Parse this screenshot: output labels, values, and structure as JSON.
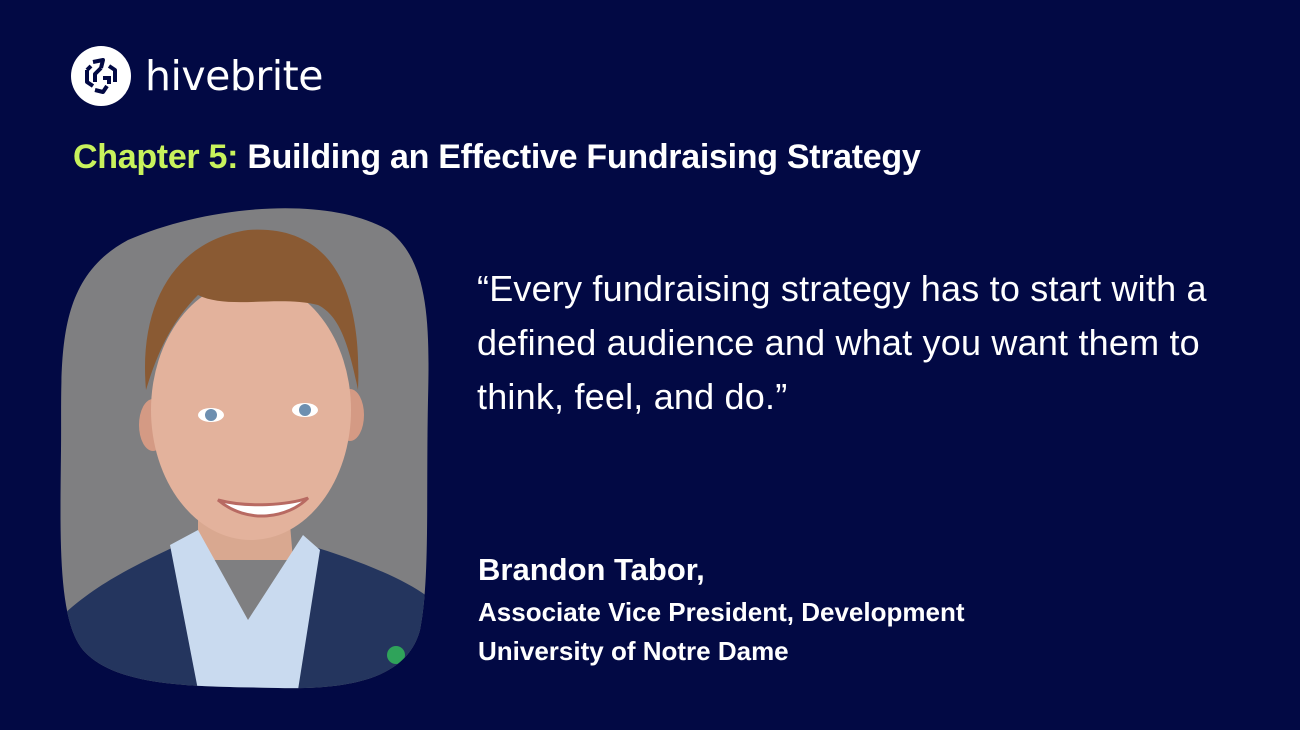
{
  "brand": {
    "name": "hivebrite",
    "icon": "hivebrite-logo-icon"
  },
  "heading": {
    "chapter": "Chapter 5:",
    "title": "Building an Effective Fundraising Strategy"
  },
  "quote": "“Every fundraising strategy has to start with a defined audience and what you want them to think, feel, and do.”",
  "speaker": {
    "name": "Brandon Tabor,",
    "title": "Associate Vice President, Development",
    "organization": "University of Notre Dame"
  },
  "colors": {
    "background": "#020944",
    "accent": "#c8f25c",
    "text": "#ffffff"
  }
}
